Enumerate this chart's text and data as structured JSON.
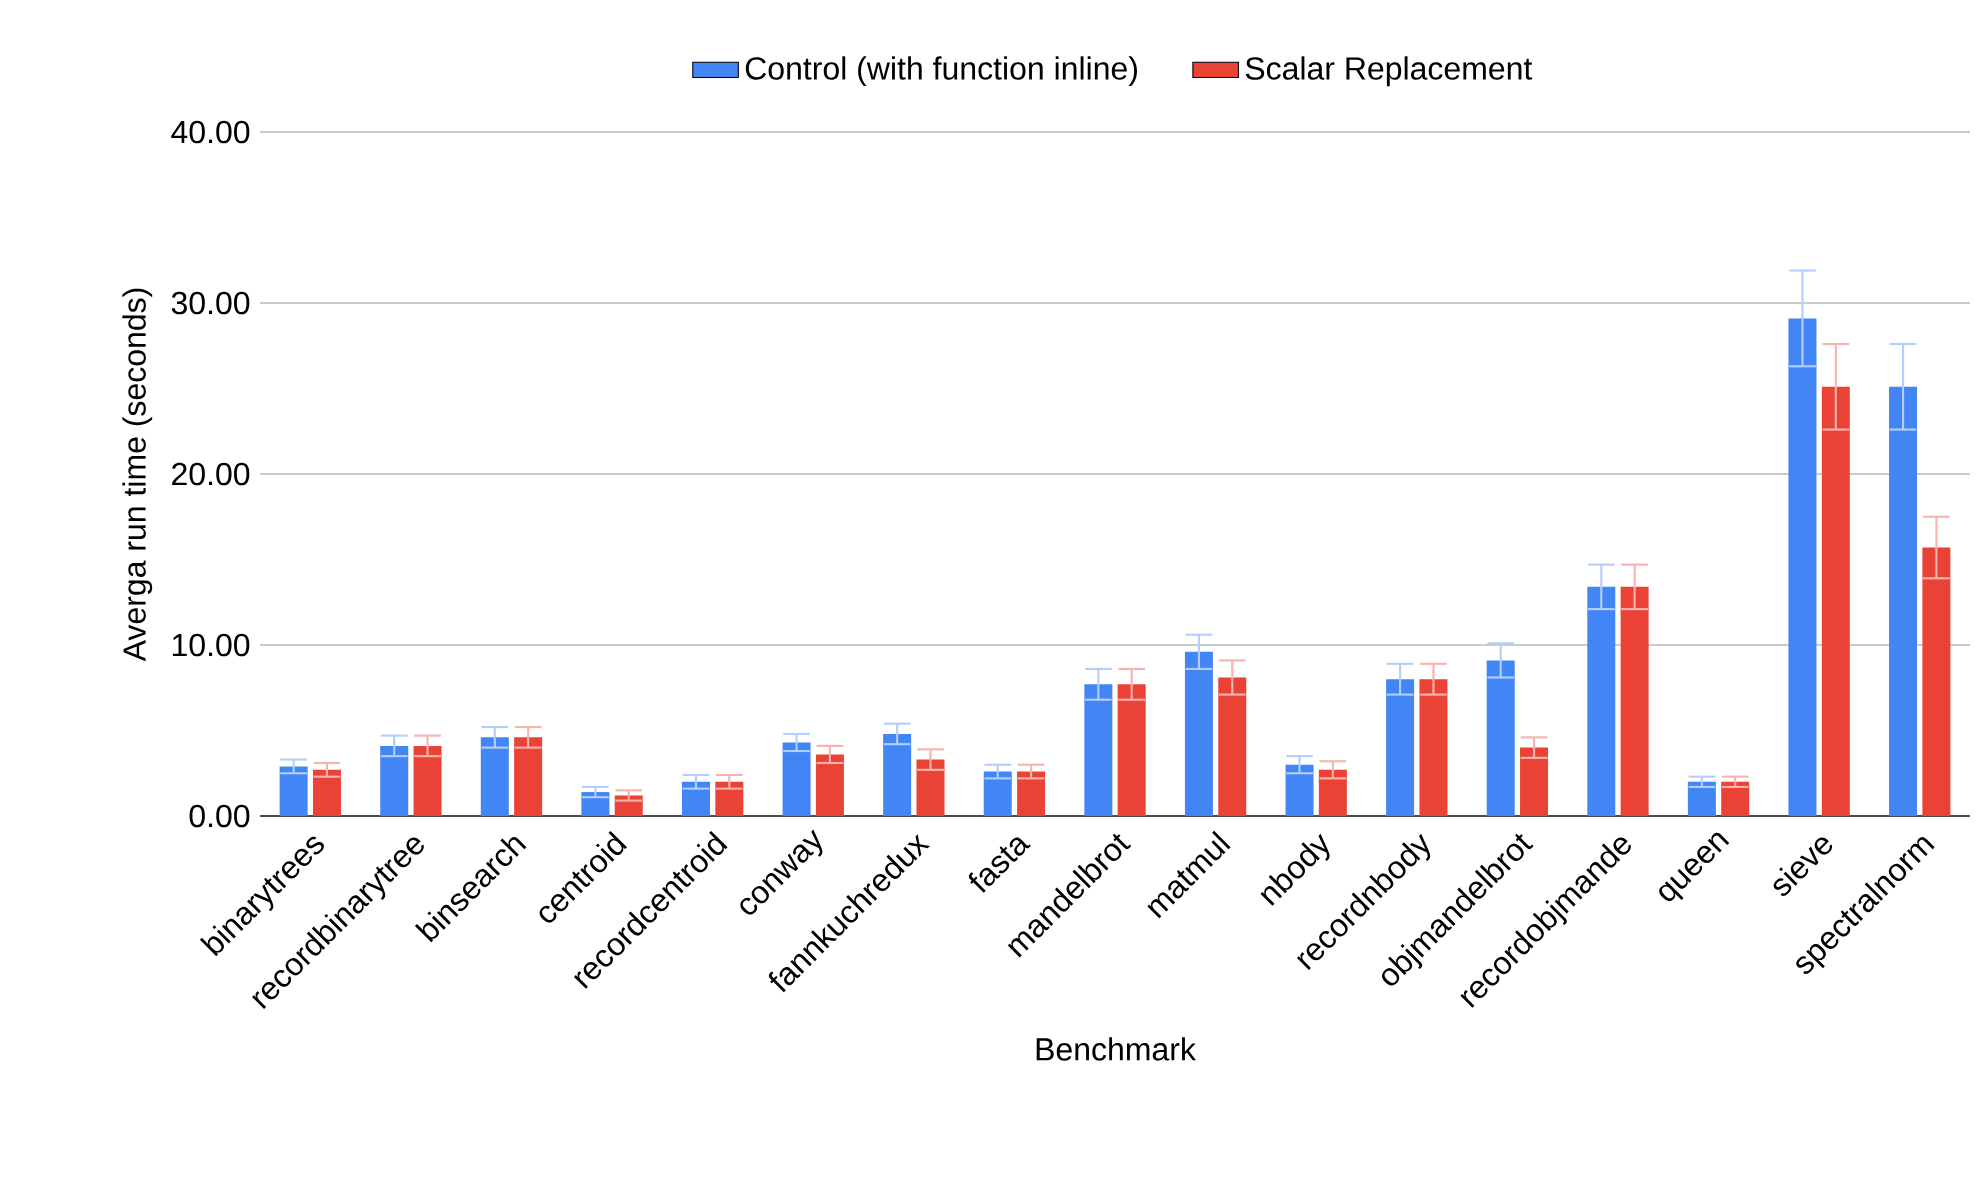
{
  "chart_data": {
    "type": "bar",
    "xlabel": "Benchmark",
    "ylabel": "Averga run time (seconds)",
    "categories": [
      "binarytrees",
      "recordbinarytree",
      "binsearch",
      "centroid",
      "recordcentroid",
      "conway",
      "fannkuchredux",
      "fasta",
      "mandelbrot",
      "matmul",
      "nbody",
      "recordnbody",
      "objmandelbrot",
      "recordobjmande",
      "queen",
      "sieve",
      "spectralnorm"
    ],
    "series": [
      {
        "name": "Control (with function inline)",
        "color": "#4285f4",
        "values": [
          2.9,
          4.1,
          4.6,
          1.4,
          2.0,
          4.3,
          4.8,
          2.6,
          7.7,
          9.6,
          3.0,
          8.0,
          9.1,
          13.4,
          2.0,
          29.1,
          25.1
        ],
        "errors": [
          0.4,
          0.6,
          0.6,
          0.3,
          0.4,
          0.5,
          0.6,
          0.4,
          0.9,
          1.0,
          0.5,
          0.9,
          1.0,
          1.3,
          0.3,
          2.8,
          2.5
        ]
      },
      {
        "name": "Scalar Replacement",
        "color": "#ea4335",
        "values": [
          2.7,
          4.1,
          4.6,
          1.2,
          2.0,
          3.6,
          3.3,
          2.6,
          7.7,
          8.1,
          2.7,
          8.0,
          4.0,
          13.4,
          2.0,
          25.1,
          15.7
        ],
        "errors": [
          0.4,
          0.6,
          0.6,
          0.3,
          0.4,
          0.5,
          0.6,
          0.4,
          0.9,
          1.0,
          0.5,
          0.9,
          0.6,
          1.3,
          0.3,
          2.5,
          1.8
        ]
      }
    ],
    "ylim": [
      0,
      40
    ],
    "yticks": [
      {
        "value": 0,
        "label": "0.00"
      },
      {
        "value": 10,
        "label": "10.00"
      },
      {
        "value": 20,
        "label": "20.00"
      },
      {
        "value": 30,
        "label": "30.00"
      },
      {
        "value": 40,
        "label": "40.00"
      }
    ],
    "grid": "y",
    "legend": "top"
  }
}
